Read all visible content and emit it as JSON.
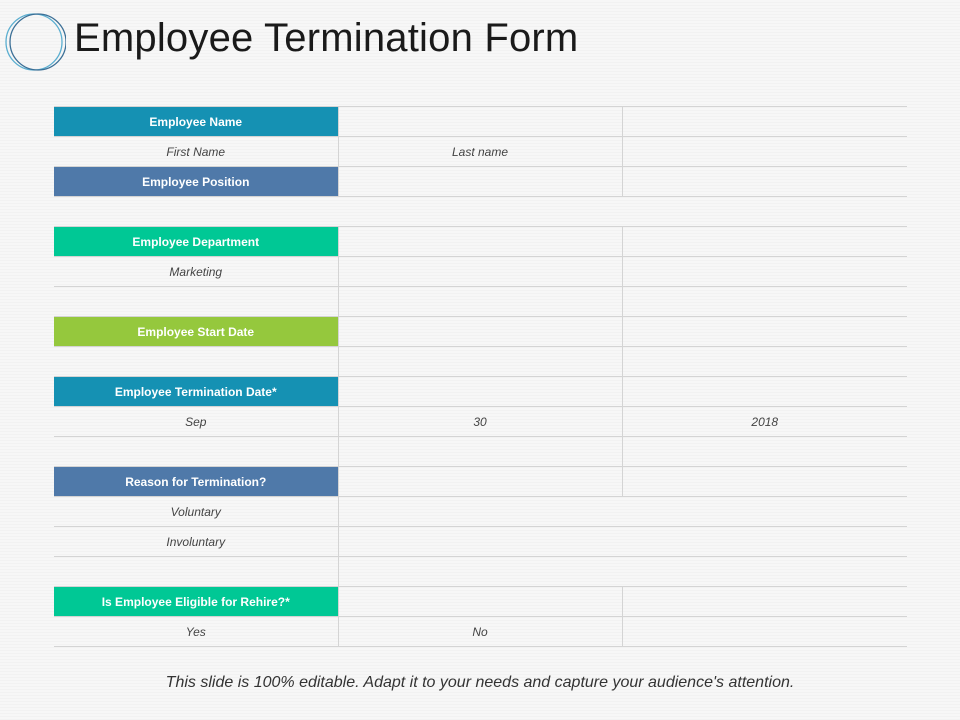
{
  "title": "Employee Termination Form",
  "colors": {
    "teal_blue": "#1591b3",
    "slate_blue": "#4f79a9",
    "mint_green": "#00c895",
    "lime_green": "#95c83d"
  },
  "form": {
    "employee_name_label": "Employee Name",
    "first_name": "First Name",
    "last_name": "Last name",
    "employee_position_label": "Employee Position",
    "department_label": "Employee Department",
    "department_value": "Marketing",
    "start_date_label": "Employee Start Date",
    "termination_date_label": "Employee Termination Date*",
    "termination_month": "Sep",
    "termination_day": "30",
    "termination_year": "2018",
    "reason_label": "Reason for Termination?",
    "reason_voluntary": "Voluntary",
    "reason_involuntary": "Involuntary",
    "rehire_label": "Is Employee Eligible for Rehire?*",
    "rehire_yes": "Yes",
    "rehire_no": "No"
  },
  "footer": "This slide is 100% editable. Adapt it to your needs and capture your audience's attention."
}
